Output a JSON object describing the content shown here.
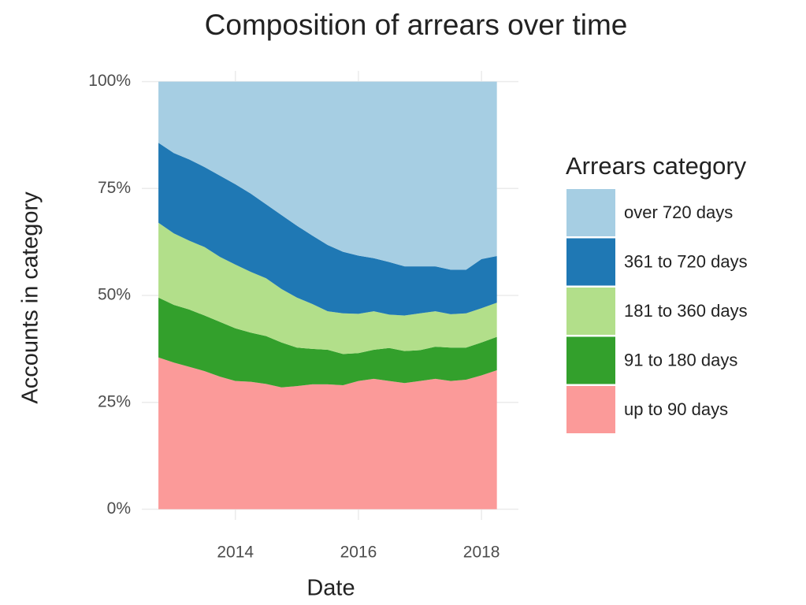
{
  "chart_data": {
    "type": "stacked_area",
    "title": "Composition of arrears over time",
    "x_label": "Date",
    "y_label": "Accounts in category",
    "legend_title": "Arrears category",
    "x": [
      2012.75,
      2013.0,
      2013.25,
      2013.5,
      2013.75,
      2014.0,
      2014.25,
      2014.5,
      2014.75,
      2015.0,
      2015.25,
      2015.5,
      2015.75,
      2016.0,
      2016.25,
      2016.5,
      2016.75,
      2017.0,
      2017.25,
      2017.5,
      2017.75,
      2018.0,
      2018.25
    ],
    "xlim": [
      2012.48,
      2018.6
    ],
    "xticks": [
      2014,
      2016,
      2018
    ],
    "ylim": [
      -2.5,
      102.5
    ],
    "yticks": [
      {
        "value": 0,
        "label": "0%"
      },
      {
        "value": 25,
        "label": "25%"
      },
      {
        "value": 50,
        "label": "50%"
      },
      {
        "value": 75,
        "label": "75%"
      },
      {
        "value": 100,
        "label": "100%"
      }
    ],
    "grid": true,
    "legend": "right",
    "series": [
      {
        "name": "up to 90 days",
        "color": "#fb9a99",
        "values": [
          35.5,
          34.3,
          33.3,
          32.3,
          31,
          30,
          29.8,
          29.3,
          28.5,
          28.8,
          29.2,
          29.2,
          29,
          30,
          30.5,
          30,
          29.5,
          30,
          30.5,
          30,
          30.3,
          31.3,
          32.5
        ]
      },
      {
        "name": "91 to 180 days",
        "color": "#33a02c",
        "values": [
          14,
          13.5,
          13.4,
          13,
          12.8,
          12.3,
          11.5,
          11.2,
          10.5,
          9,
          8.3,
          8.1,
          7.3,
          6.5,
          6.8,
          7.7,
          7.5,
          7.2,
          7.5,
          7.8,
          7.5,
          7.7,
          7.8
        ]
      },
      {
        "name": "181 to 360 days",
        "color": "#b2df8a",
        "values": [
          17.5,
          16.7,
          16.1,
          16,
          15.2,
          14.9,
          14.2,
          13.5,
          12.5,
          11.7,
          10.5,
          9,
          9.5,
          9.2,
          9,
          7.8,
          8.3,
          8.6,
          8.3,
          7.8,
          8,
          8,
          8
        ]
      },
      {
        "name": "361 to 720 days",
        "color": "#1f78b4",
        "values": [
          18.7,
          18.8,
          19,
          18.7,
          19,
          18.8,
          18.3,
          17.3,
          17.3,
          16.8,
          16,
          15.5,
          14.4,
          13.6,
          12.4,
          12.3,
          11.5,
          11,
          10.5,
          10.4,
          10.2,
          11.5,
          10.9
        ]
      },
      {
        "name": "over 720 days",
        "color": "#a6cee3",
        "values": [
          14.3,
          16.7,
          18.2,
          20,
          22,
          24,
          26.2,
          28.7,
          31.2,
          33.7,
          36,
          38.2,
          39.8,
          40.7,
          41.3,
          42.2,
          43.2,
          43.2,
          43.2,
          44,
          44,
          41.5,
          40.8
        ]
      }
    ]
  }
}
